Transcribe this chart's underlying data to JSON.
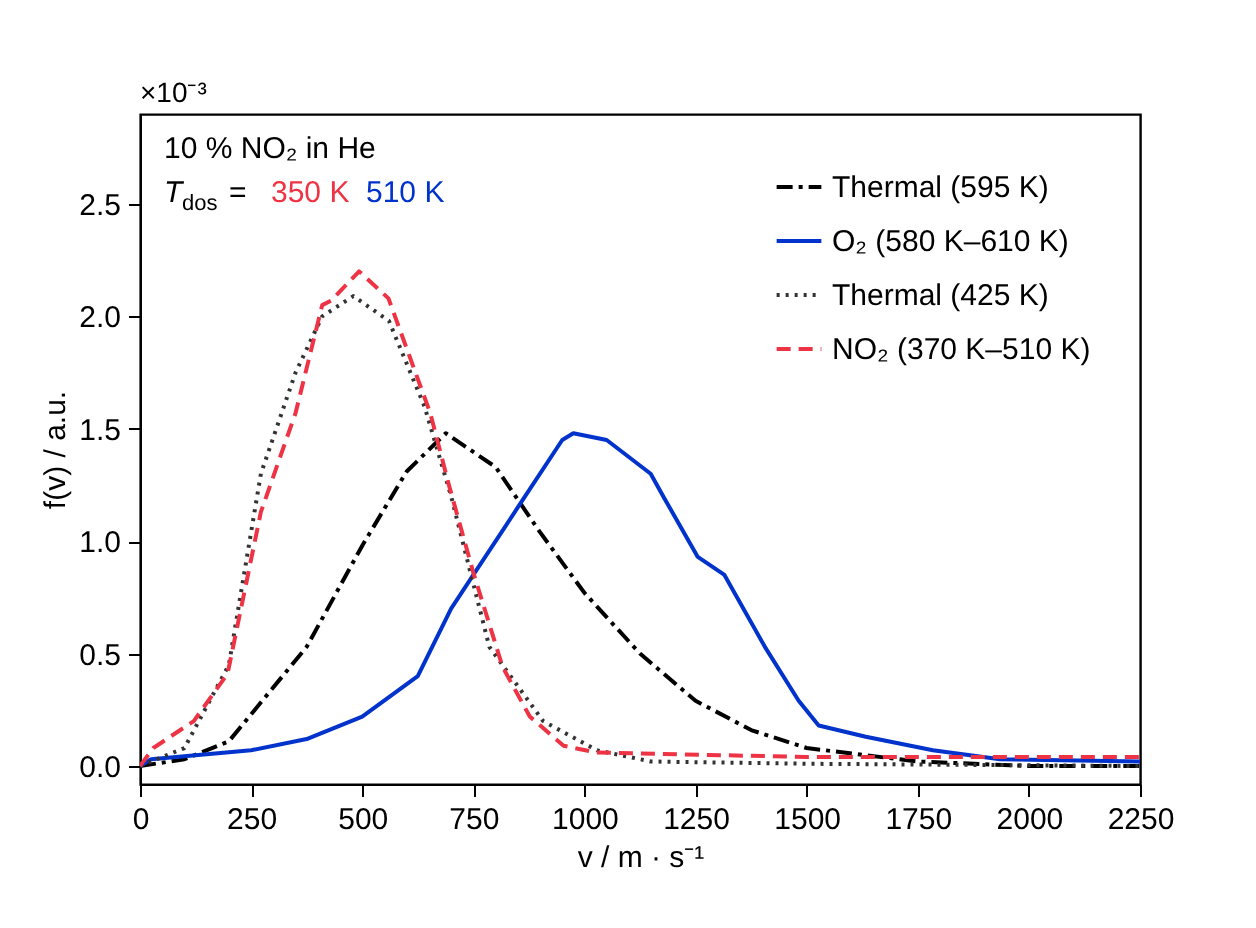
{
  "chart_data": {
    "type": "line",
    "xlabel": "v / m · s⁻¹",
    "ylabel": "f(v) / a.u.",
    "xlim": [
      0,
      2250
    ],
    "xticks": [
      0,
      250,
      500,
      750,
      1000,
      1250,
      1500,
      1750,
      2000,
      2250
    ],
    "ylim": [
      -0.08,
      2.9
    ],
    "yticks": [
      {
        "value": 0,
        "label": "0.0"
      },
      0.5,
      {
        "value": 1,
        "label": "1.0"
      },
      1.5,
      {
        "value": 2,
        "label": "2.0"
      },
      2.5
    ],
    "grid": false,
    "legend": "top right",
    "annotations": [
      "×10⁻³",
      "10 % NO₂ in He",
      "T$_{dos}$ =",
      "350 K",
      "510 K"
    ],
    "series": [
      {
        "name": "Thermal (595 K)",
        "color": "#000000",
        "line_style": "dashdot",
        "x": [
          0,
          100,
          200,
          250,
          375,
          500,
          600,
          688,
          800,
          900,
          1000,
          1125,
          1250,
          1375,
          1500,
          1750,
          2000,
          2250
        ],
        "values": [
          0,
          0.03,
          0.11,
          0.23,
          0.53,
          0.98,
          1.31,
          1.48,
          1.33,
          1.04,
          0.77,
          0.5,
          0.29,
          0.16,
          0.08,
          0.02,
          0.0,
          0.0
        ]
      },
      {
        "name": "O₂ (580 K–610 K)",
        "color": "#0033cc",
        "line_style": "solid",
        "x": [
          0,
          25,
          250,
          375,
          500,
          625,
          700,
          750,
          850,
          950,
          975,
          1050,
          1149,
          1180,
          1255,
          1315,
          1406,
          1482,
          1527,
          1633,
          1784,
          1935,
          2250
        ],
        "values": [
          0,
          0.03,
          0.07,
          0.12,
          0.22,
          0.4,
          0.7,
          0.85,
          1.15,
          1.45,
          1.48,
          1.45,
          1.3,
          1.19,
          0.93,
          0.85,
          0.53,
          0.29,
          0.18,
          0.13,
          0.07,
          0.03,
          0.02
        ]
      },
      {
        "name": "Thermal (425 K)",
        "color": "#333333",
        "line_style": "dotted",
        "x": [
          0,
          100,
          200,
          272,
          350,
          410,
          480,
          560,
          640,
          700,
          786,
          907,
          1028,
          1150,
          1500,
          2250
        ],
        "values": [
          0,
          0.08,
          0.45,
          1.3,
          1.75,
          2.0,
          2.09,
          1.98,
          1.6,
          1.2,
          0.53,
          0.2,
          0.07,
          0.02,
          0.01,
          0.0
        ]
      },
      {
        "name": "NO₂ (370 K–510 K)",
        "color": "#ee3344",
        "line_style": "dashed",
        "x": [
          0,
          30,
          121,
          197,
          272,
          350,
          410,
          430,
          493,
          559,
          653,
          695,
          750,
          816,
          877,
          953,
          1028,
          1500,
          2250
        ],
        "values": [
          0,
          0.08,
          0.2,
          0.41,
          1.13,
          1.57,
          2.05,
          2.07,
          2.2,
          2.08,
          1.57,
          1.25,
          0.86,
          0.44,
          0.22,
          0.09,
          0.06,
          0.04,
          0.04
        ]
      }
    ]
  }
}
